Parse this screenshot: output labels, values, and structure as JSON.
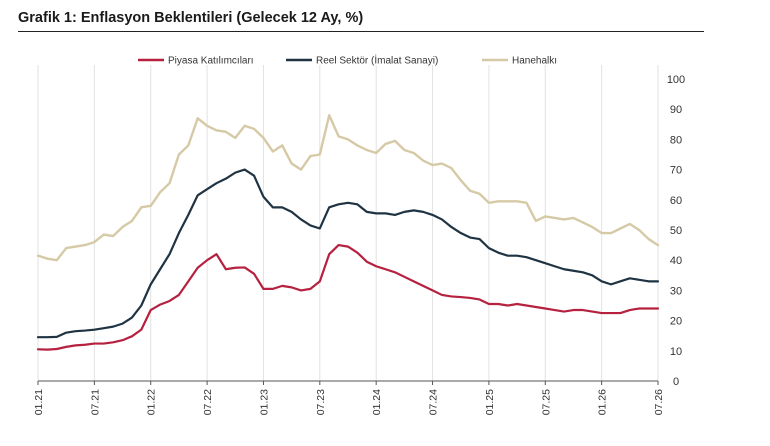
{
  "title": "Grafik 1: Enflasyon Beklentileri (Gelecek 12 Ay, %)",
  "chart_data": {
    "type": "line",
    "title": "Grafik 1: Enflasyon Beklentileri (Gelecek 12 Ay, %)",
    "xlabel": "",
    "ylabel": "",
    "ylim": [
      0,
      100
    ],
    "yticks": [
      "0",
      "10",
      "20",
      "30",
      "40",
      "50",
      "60",
      "70",
      "80",
      "90",
      "100"
    ],
    "y_axis_position": "right",
    "grid": "vertical",
    "legend_position": "top",
    "x_ticks": [
      "01.21",
      "07.21",
      "01.22",
      "07.22",
      "01.23",
      "07.23",
      "01.24",
      "07.24",
      "01.25",
      "07.25",
      "01.26",
      "07.26"
    ],
    "x_tick_index": [
      0,
      6,
      12,
      18,
      24,
      30,
      36,
      42,
      48,
      54,
      60,
      66
    ],
    "series": [
      {
        "name": "Piyasa Katılımcıları",
        "color": "#b5213f",
        "start_index": 0,
        "values": [
          10.5,
          10.4,
          10.6,
          11.3,
          11.8,
          12.0,
          12.4,
          12.4,
          12.8,
          13.5,
          14.8,
          17.0,
          23.5,
          25.3,
          26.5,
          28.5,
          33.0,
          37.5,
          40.0,
          42.0,
          37.0,
          37.5,
          37.6,
          35.5,
          30.5,
          30.5,
          31.5,
          31.0,
          30.0,
          30.5,
          33.0,
          42.0,
          45.0,
          44.5,
          42.5,
          39.5,
          38.0,
          37.0,
          36.0,
          34.5,
          33.0,
          31.5,
          30.0,
          28.5,
          28.0,
          27.8,
          27.5,
          27.0,
          25.5,
          25.5,
          25.0,
          25.5,
          25.0,
          24.5,
          24.0,
          23.5,
          23.0,
          23.5,
          23.5,
          23.0,
          22.5,
          22.5,
          22.5,
          23.5,
          24.0,
          24.0,
          24.0
        ]
      },
      {
        "name": "Reel Sektör (İmalat Sanayi)",
        "color": "#1f3342",
        "start_index": 0,
        "values": [
          14.5,
          14.5,
          14.6,
          16.0,
          16.5,
          16.7,
          17.0,
          17.5,
          18.0,
          19.0,
          21.0,
          25.0,
          32.0,
          37.0,
          42.0,
          49.0,
          55.0,
          61.5,
          63.5,
          65.5,
          67.0,
          69.0,
          70.0,
          68.0,
          61.0,
          57.5,
          57.5,
          56.0,
          53.5,
          51.5,
          50.5,
          57.5,
          58.5,
          59.0,
          58.5,
          56.0,
          55.5,
          55.5,
          55.0,
          56.0,
          56.5,
          56.0,
          55.0,
          53.5,
          51.0,
          49.0,
          47.5,
          47.0,
          44.0,
          42.5,
          41.5,
          41.5,
          41.0,
          40.0,
          39.0,
          38.0,
          37.0,
          36.5,
          36.0,
          35.0,
          33.0,
          32.0,
          33.0,
          34.0,
          33.5,
          33.0,
          33.0
        ]
      },
      {
        "name": "Hanehalkı",
        "color": "#d6c9a6",
        "start_index": 0,
        "values": [
          41.5,
          40.5,
          40.0,
          44.0,
          44.5,
          45.0,
          46.0,
          48.5,
          48.0,
          51.0,
          53.0,
          57.5,
          58.0,
          62.5,
          65.5,
          75.0,
          78.0,
          87.0,
          84.5,
          83.0,
          82.5,
          80.5,
          84.5,
          83.5,
          80.5,
          76.0,
          78.0,
          72.0,
          70.0,
          74.5,
          75.0,
          88.0,
          81.0,
          80.0,
          78.0,
          76.5,
          75.5,
          78.5,
          79.5,
          76.5,
          75.5,
          73.0,
          71.5,
          72.0,
          70.5,
          66.5,
          63.0,
          62.0,
          59.0,
          59.5,
          59.5,
          59.5,
          59.0,
          53.0,
          54.5,
          54.0,
          53.5,
          54.0,
          52.5,
          51.0,
          49.0,
          49.0,
          50.5,
          52.0,
          50.0,
          47.0,
          45.0
        ]
      }
    ]
  }
}
